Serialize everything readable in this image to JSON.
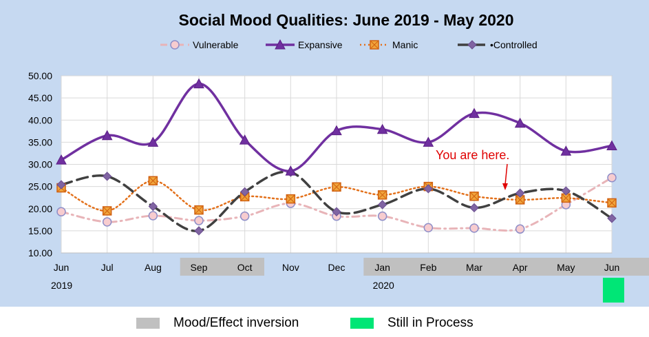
{
  "chart_data": {
    "type": "line",
    "title": "Social Mood Qualities:  June 2019 - May 2020",
    "categories": [
      "Jun",
      "Jul",
      "Aug",
      "Sep",
      "Oct",
      "Nov",
      "Dec",
      "Jan",
      "Feb",
      "Mar",
      "Apr",
      "May",
      "Jun"
    ],
    "year_labels": [
      {
        "category": "Jun",
        "text": "2019"
      },
      {
        "category": "Jan",
        "text": "2020"
      }
    ],
    "ylim": [
      10,
      50
    ],
    "yticks": [
      "10.00",
      "15.00",
      "20.00",
      "25.00",
      "30.00",
      "35.00",
      "40.00",
      "45.00",
      "50.00"
    ],
    "grid": "horizontal and vertical",
    "legend_position": "top",
    "series": [
      {
        "name": "Vulnerable",
        "style": "dash-dot",
        "color": "#e8b4b8",
        "marker": "circle",
        "marker_color": "#f7cccf",
        "values": [
          19.3,
          17.0,
          18.4,
          17.3,
          18.3,
          21.2,
          18.3,
          18.3,
          15.7,
          15.6,
          15.4,
          20.9,
          27.0
        ]
      },
      {
        "name": "Expansive",
        "style": "solid",
        "color": "#7030a0",
        "marker": "triangle",
        "marker_color": "#7030a0",
        "values": [
          31.0,
          36.5,
          35.0,
          48.2,
          35.5,
          28.5,
          37.6,
          37.9,
          35.0,
          41.5,
          39.3,
          33.0,
          34.2
        ]
      },
      {
        "name": "Manic",
        "style": "dotted",
        "color": "#e3701a",
        "marker": "square",
        "marker_color": "#f0a43c",
        "values": [
          24.7,
          19.5,
          26.3,
          19.7,
          22.7,
          22.2,
          24.9,
          23.1,
          25.0,
          22.8,
          22.0,
          22.4,
          21.3
        ]
      },
      {
        "name": "•Controlled",
        "style": "long-dash",
        "color": "#404040",
        "marker": "diamond",
        "marker_color": "#8064a2",
        "values": [
          25.4,
          27.3,
          20.5,
          15.0,
          23.8,
          28.2,
          19.3,
          20.9,
          24.5,
          20.2,
          23.5,
          24.0,
          17.8
        ]
      }
    ],
    "annotation": {
      "text": "You are here.",
      "color": "#e00000",
      "points_to": "Apr"
    },
    "shaded_periods": [
      {
        "meaning": "Mood/Effect inversion",
        "categories": [
          "Sep",
          "Oct"
        ],
        "color": "#c0c0c0"
      },
      {
        "meaning": "Mood/Effect inversion",
        "categories": [
          "Jan",
          "Feb",
          "Mar",
          "Apr",
          "May",
          "Jun"
        ],
        "color": "#c0c0c0"
      },
      {
        "meaning": "Still in Process",
        "categories": [
          "Jun"
        ],
        "color": "#00e676"
      }
    ]
  },
  "key": [
    {
      "label": "Mood/Effect inversion",
      "color": "#c0c0c0"
    },
    {
      "label": "Still in Process",
      "color": "#00e676"
    }
  ]
}
